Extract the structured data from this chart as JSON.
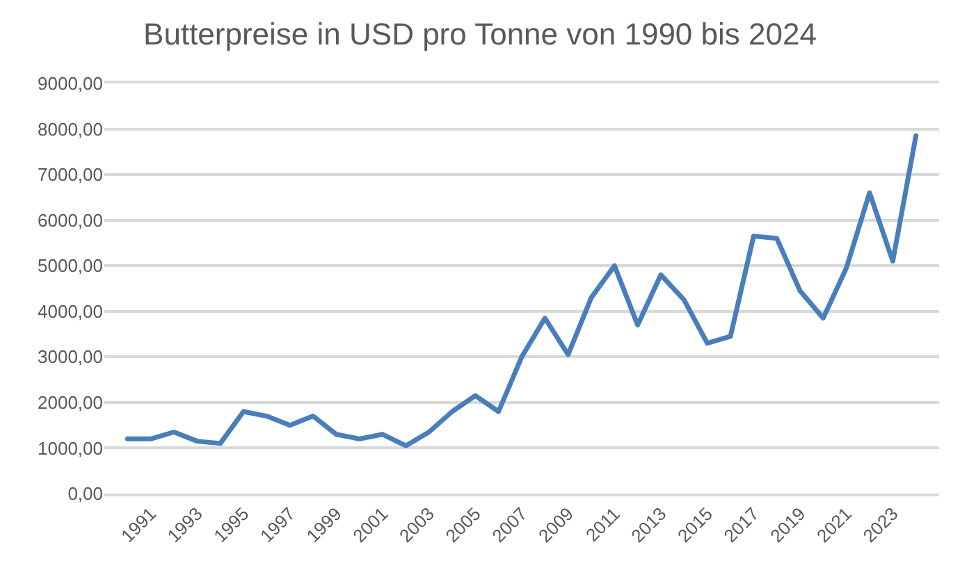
{
  "chart_data": {
    "type": "line",
    "title": "Butterpreise in USD pro Tonne von 1990 bis 2024",
    "categories": [
      null,
      "1991",
      null,
      "1993",
      null,
      "1995",
      null,
      "1997",
      null,
      "1999",
      null,
      "2001",
      null,
      "2003",
      null,
      "2005",
      null,
      "2007",
      null,
      "2009",
      null,
      "2011",
      null,
      "2013",
      null,
      "2015",
      null,
      "2017",
      null,
      "2019",
      null,
      "2021",
      null,
      "2023",
      null
    ],
    "series": [
      {
        "color": "#4a7ebb",
        "values": [
          1200,
          1200,
          1350,
          1150,
          1100,
          1800,
          1700,
          1500,
          1700,
          1300,
          1200,
          1300,
          1050,
          1350,
          1800,
          2150,
          1800,
          3000,
          3850,
          3050,
          4300,
          5000,
          3700,
          4800,
          4250,
          3300,
          3450,
          5650,
          5600,
          4450,
          3850,
          4950,
          6600,
          5100,
          7850
        ]
      }
    ],
    "ylim": [
      0,
      9000
    ],
    "yticks": [
      {
        "value": 0,
        "label": "0,00"
      },
      {
        "value": 1000,
        "label": "1000,00"
      },
      {
        "value": 2000,
        "label": "2000,00"
      },
      {
        "value": 3000,
        "label": "3000,00"
      },
      {
        "value": 4000,
        "label": "4000,00"
      },
      {
        "value": 5000,
        "label": "5000,00"
      },
      {
        "value": 6000,
        "label": "6000,00"
      },
      {
        "value": 7000,
        "label": "7000,00"
      },
      {
        "value": 8000,
        "label": "8000,00"
      },
      {
        "value": 9000,
        "label": "9000,00"
      }
    ],
    "grid": "y",
    "marker": "none",
    "line_style": "solid"
  }
}
